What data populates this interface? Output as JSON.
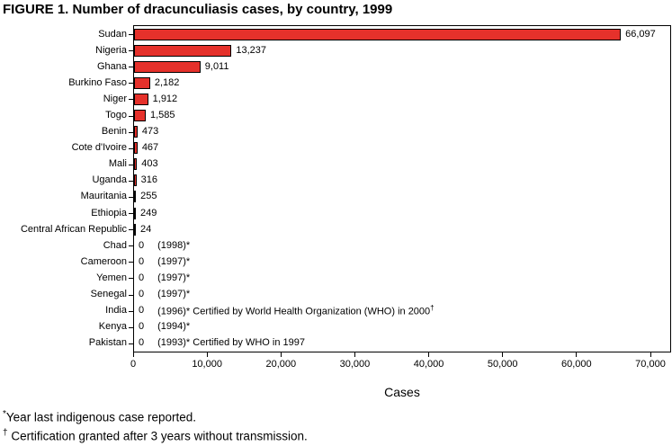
{
  "title": "FIGURE 1. Number of dracunculiasis cases, by country, 1999",
  "chart_data": {
    "type": "bar",
    "orientation": "horizontal",
    "title": "FIGURE 1. Number of dracunculiasis cases, by country, 1999",
    "xlabel": "Cases",
    "ylabel": "",
    "xlim": [
      0,
      70000
    ],
    "grid": false,
    "legend": "none",
    "bar_color": "#e5312b",
    "xticks": [
      0,
      10000,
      20000,
      30000,
      40000,
      50000,
      60000,
      70000
    ],
    "xtick_labels": [
      "0",
      "10,000",
      "20,000",
      "30,000",
      "40,000",
      "50,000",
      "60,000",
      "70,000"
    ],
    "categories": [
      "Sudan",
      "Nigeria",
      "Ghana",
      "Burkino Faso",
      "Niger",
      "Togo",
      "Benin",
      "Cote d'Ivoire",
      "Mali",
      "Uganda",
      "Mauritania",
      "Ethiopia",
      "Central African Republic",
      "Chad",
      "Cameroon",
      "Yemen",
      "Senegal",
      "India",
      "Kenya",
      "Pakistan"
    ],
    "values": [
      66097,
      13237,
      9011,
      2182,
      1912,
      1585,
      473,
      467,
      403,
      316,
      255,
      249,
      24,
      0,
      0,
      0,
      0,
      0,
      0,
      0
    ],
    "value_labels": [
      "66,097",
      "13,237",
      "9,011",
      "2,182",
      "1,912",
      "1,585",
      "473",
      "467",
      "403",
      "316",
      "255",
      "249",
      "24",
      "0",
      "0",
      "0",
      "0",
      "0",
      "0",
      "0"
    ],
    "annotations": [
      "",
      "",
      "",
      "",
      "",
      "",
      "",
      "",
      "",
      "",
      "",
      "",
      "",
      "(1998)*",
      "(1997)*",
      "(1997)*",
      "(1997)*",
      "(1996)* Certified by World Health Organization (WHO) in 2000†",
      "(1994)*",
      "(1993)* Certified by WHO in 1997"
    ]
  },
  "footnotes": [
    {
      "marker": "*",
      "text": "Year last indigenous case reported."
    },
    {
      "marker": "†",
      "text": " Certification granted after  3 years without transmission."
    }
  ]
}
